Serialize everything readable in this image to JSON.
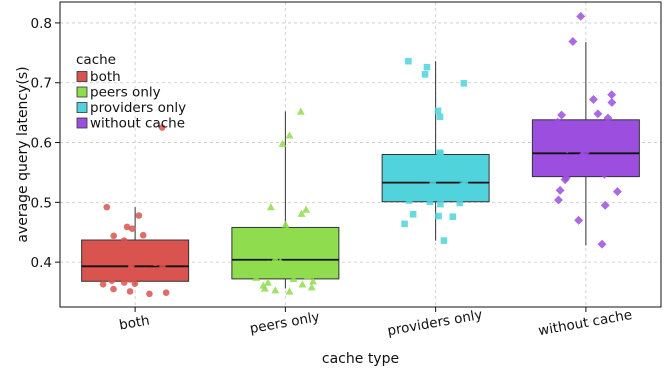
{
  "chart_data": {
    "type": "box",
    "xlabel": "cache type",
    "ylabel": "average query latency(s)",
    "ylim": [
      0.325,
      0.835
    ],
    "yticks": [
      0.4,
      0.5,
      0.6,
      0.7,
      0.8
    ],
    "ytick_labels": [
      "0.4",
      "0.5",
      "0.6",
      "0.7",
      "0.8"
    ],
    "grid": true,
    "legend": {
      "title": "cache",
      "placement": "upper-left"
    },
    "categories": [
      "both",
      "peers only",
      "providers only",
      "without cache"
    ],
    "series": [
      {
        "name": "both",
        "color": "#d9534f",
        "marker": "circle",
        "box": {
          "q1": 0.368,
          "median": 0.393,
          "q3": 0.437,
          "whisker_low": 0.363,
          "whisker_high": 0.492
        },
        "points": [
          0.625,
          0.492,
          0.478,
          0.459,
          0.456,
          0.445,
          0.444,
          0.436,
          0.427,
          0.424,
          0.418,
          0.413,
          0.405,
          0.399,
          0.394,
          0.392,
          0.389,
          0.386,
          0.383,
          0.381,
          0.378,
          0.375,
          0.371,
          0.369,
          0.366,
          0.364,
          0.363,
          0.355,
          0.351,
          0.349,
          0.347
        ]
      },
      {
        "name": "peers only",
        "color": "#8fdd4f",
        "marker": "triangle",
        "box": {
          "q1": 0.372,
          "median": 0.404,
          "q3": 0.458,
          "whisker_low": 0.356,
          "whisker_high": 0.652
        },
        "points": [
          0.652,
          0.612,
          0.598,
          0.492,
          0.488,
          0.481,
          0.463,
          0.455,
          0.447,
          0.441,
          0.432,
          0.425,
          0.419,
          0.412,
          0.406,
          0.401,
          0.397,
          0.392,
          0.386,
          0.381,
          0.377,
          0.374,
          0.372,
          0.368,
          0.366,
          0.363,
          0.361,
          0.358,
          0.356,
          0.353,
          0.351
        ]
      },
      {
        "name": "providers only",
        "color": "#50d3dc",
        "marker": "square",
        "box": {
          "q1": 0.501,
          "median": 0.533,
          "q3": 0.58,
          "whisker_low": 0.436,
          "whisker_high": 0.736
        },
        "points": [
          0.736,
          0.726,
          0.714,
          0.699,
          0.653,
          0.643,
          0.583,
          0.581,
          0.578,
          0.571,
          0.565,
          0.559,
          0.552,
          0.546,
          0.541,
          0.536,
          0.532,
          0.528,
          0.522,
          0.517,
          0.512,
          0.507,
          0.503,
          0.501,
          0.499,
          0.497,
          0.48,
          0.477,
          0.476,
          0.464,
          0.436
        ]
      },
      {
        "name": "without cache",
        "color": "#9c4fdf",
        "marker": "diamond",
        "box": {
          "q1": 0.543,
          "median": 0.582,
          "q3": 0.638,
          "whisker_low": 0.428,
          "whisker_high": 0.768
        },
        "points": [
          0.811,
          0.769,
          0.68,
          0.672,
          0.667,
          0.648,
          0.646,
          0.641,
          0.634,
          0.627,
          0.619,
          0.612,
          0.604,
          0.597,
          0.589,
          0.583,
          0.578,
          0.571,
          0.566,
          0.559,
          0.552,
          0.547,
          0.541,
          0.538,
          0.52,
          0.518,
          0.504,
          0.495,
          0.47,
          0.43
        ]
      }
    ]
  }
}
